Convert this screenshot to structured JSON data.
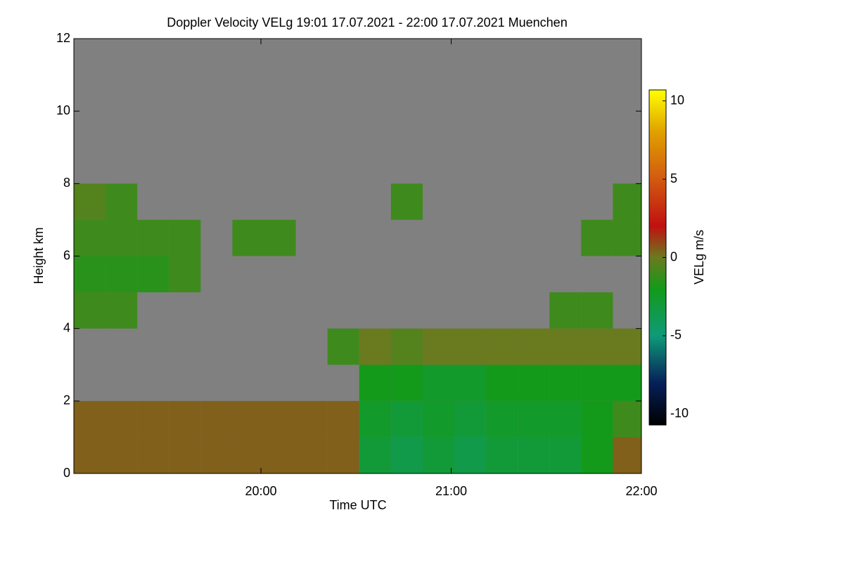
{
  "chart_data": {
    "type": "heatmap",
    "title": "Doppler Velocity VELg   19:01 17.07.2021 - 22:00 17.07.2021 Muenchen",
    "x_label": "Time UTC",
    "y_label": "Height km",
    "colorbar_label": "VELg m/s",
    "background": "#808080",
    "xlim": [
      1141,
      1320
    ],
    "xticks": [
      {
        "value": 1200,
        "label": "20:00"
      },
      {
        "value": 1260,
        "label": "21:00"
      },
      {
        "value": 1320,
        "label": "22:00"
      }
    ],
    "ylim": [
      0,
      12
    ],
    "yticks": [
      0,
      2,
      4,
      6,
      8,
      10,
      12
    ],
    "clim": [
      -10.7,
      10.7
    ],
    "cticks": [
      -10,
      -5,
      0,
      5,
      10
    ],
    "colorscale": [
      [
        -10.7,
        "#000000"
      ],
      [
        -8,
        "#06205a"
      ],
      [
        -5,
        "#0f9a78"
      ],
      [
        -2,
        "#139a1a"
      ],
      [
        0,
        "#6a7a1e"
      ],
      [
        2,
        "#c01010"
      ],
      [
        5,
        "#d25a10"
      ],
      [
        8,
        "#e0a000"
      ],
      [
        10.7,
        "#ffff00"
      ]
    ],
    "x": [
      1141,
      1151,
      1161,
      1171,
      1181,
      1191,
      1201,
      1211,
      1221,
      1231,
      1241,
      1251,
      1261,
      1271,
      1281,
      1291,
      1301,
      1311
    ],
    "y": [
      0,
      1,
      2,
      3,
      4,
      5,
      6,
      7,
      8,
      9,
      10,
      11
    ],
    "z": [
      [
        0.5,
        0.5,
        0.5,
        0.5,
        0.5,
        0.5,
        0.5,
        0.5,
        0.5,
        -3,
        -3.5,
        -3,
        -3.5,
        -3,
        -3,
        -3,
        -2,
        0.5
      ],
      [
        0.5,
        0.5,
        0.5,
        0.5,
        0.5,
        0.5,
        0.5,
        0.5,
        0.5,
        -2.5,
        -3,
        -2.5,
        -3,
        -2.5,
        -2.5,
        -2.5,
        -2,
        -1
      ],
      [
        null,
        null,
        null,
        null,
        null,
        null,
        null,
        null,
        null,
        -2,
        -2,
        -2.5,
        -2.5,
        -2,
        -2,
        -2,
        -2,
        -2
      ],
      [
        null,
        null,
        null,
        null,
        null,
        null,
        null,
        null,
        -1,
        0,
        -0.5,
        0,
        0,
        0,
        0,
        0,
        0,
        0
      ],
      [
        -1,
        -1,
        null,
        null,
        null,
        null,
        null,
        null,
        null,
        null,
        null,
        null,
        null,
        null,
        null,
        -1,
        -1,
        null
      ],
      [
        -1.5,
        -1.5,
        -1.5,
        -1,
        null,
        null,
        null,
        null,
        null,
        null,
        null,
        null,
        null,
        null,
        null,
        null,
        null,
        null
      ],
      [
        -1,
        -1,
        -1,
        -1,
        null,
        -1,
        -1,
        null,
        null,
        null,
        null,
        null,
        null,
        null,
        null,
        null,
        -1,
        -1
      ],
      [
        -0.5,
        -1,
        null,
        null,
        null,
        null,
        null,
        null,
        null,
        null,
        -1,
        null,
        null,
        null,
        null,
        null,
        null,
        -1
      ],
      [
        null,
        null,
        null,
        null,
        null,
        null,
        null,
        null,
        null,
        null,
        null,
        null,
        null,
        null,
        null,
        null,
        null,
        null
      ],
      [
        null,
        null,
        null,
        null,
        null,
        null,
        null,
        null,
        null,
        null,
        null,
        null,
        null,
        null,
        null,
        null,
        null,
        null
      ],
      [
        null,
        null,
        null,
        null,
        null,
        null,
        null,
        null,
        null,
        null,
        null,
        null,
        null,
        null,
        null,
        null,
        null,
        null
      ],
      [
        null,
        null,
        null,
        null,
        null,
        null,
        null,
        null,
        null,
        null,
        null,
        null,
        null,
        null,
        null,
        null,
        null,
        null
      ]
    ]
  }
}
